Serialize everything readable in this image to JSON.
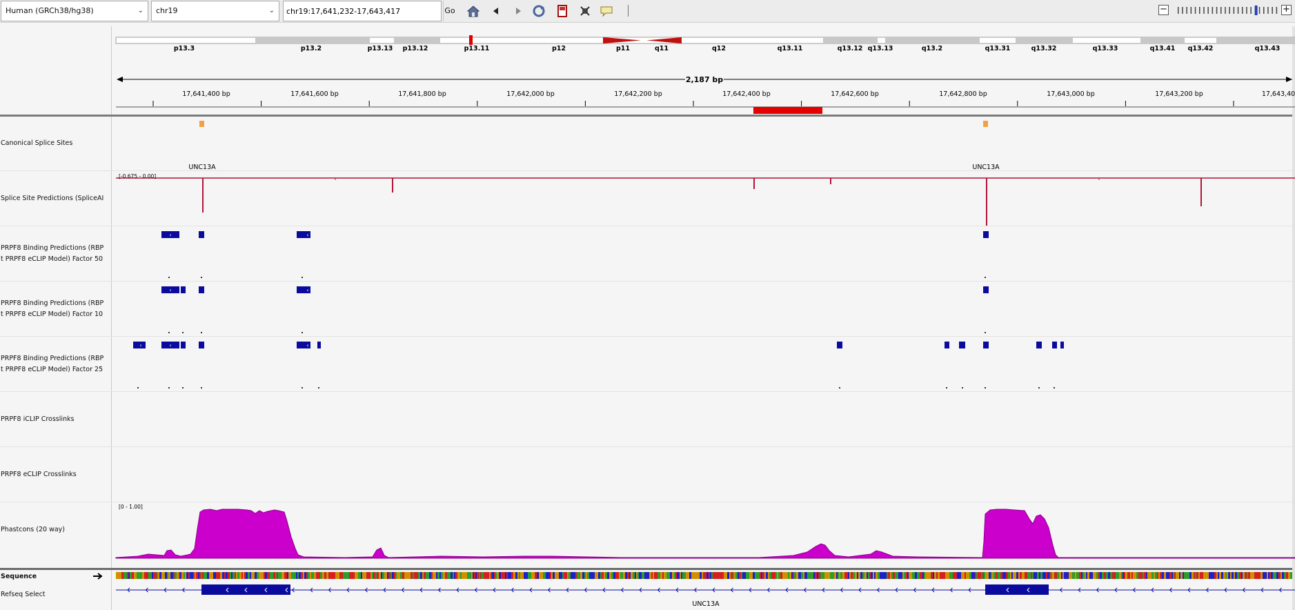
{
  "toolbar": {
    "genome": "Human (GRCh38/hg38)",
    "chromosome": "chr19",
    "locus": "chr19:17,641,232-17,643,417",
    "go_label": "Go",
    "icons": [
      "home-icon",
      "back-icon",
      "forward-icon",
      "refresh-icon",
      "roi-icon",
      "resize-icon",
      "popup-text-icon"
    ]
  },
  "ideogram": {
    "bands": [
      "p13.3",
      "p13.2",
      "p13.13",
      "p13.12",
      "p13.11",
      "p12",
      "p11",
      "q11",
      "q12",
      "q13.11",
      "q13.12",
      "q13.13",
      "q13.2",
      "q13.31",
      "q13.32",
      "q13.33",
      "q13.41",
      "q13.42",
      "q13.43"
    ]
  },
  "ruler": {
    "span_label": "2,187 bp",
    "tick_labels": [
      "17,641,400 bp",
      "17,641,600 bp",
      "17,641,800 bp",
      "17,642,000 bp",
      "17,642,200 bp",
      "17,642,400 bp",
      "17,642,600 bp",
      "17,642,800 bp",
      "17,643,000 bp",
      "17,643,200 bp",
      "17,643,40"
    ]
  },
  "tracks": {
    "canonical": {
      "name": "Canonical Splice Sites",
      "gene_labels": [
        "UNC13A",
        "UNC13A"
      ]
    },
    "spliceai": {
      "name": "Splice Site Predictions (SpliceAI",
      "range": "[-0.675 - 0.00]"
    },
    "prpf8_50": {
      "name_line1": "PRPF8 Binding Predictions (RBP",
      "name_line2": "t PRPF8 eCLIP Model) Factor 50"
    },
    "prpf8_10": {
      "name_line1": "PRPF8 Binding Predictions (RBP",
      "name_line2": "t PRPF8 eCLIP Model) Factor 10"
    },
    "prpf8_25": {
      "name_line1": "PRPF8 Binding Predictions (RBP",
      "name_line2": "t PRPF8 eCLIP Model) Factor 25"
    },
    "iclip": {
      "name": "PRPF8 iCLIP Crosslinks"
    },
    "eclip": {
      "name": "PRPF8 eCLIP Crosslinks"
    },
    "phastcons": {
      "name": "Phastcons (20 way)",
      "range": "[0 - 1.00]"
    },
    "sequence": {
      "name": "Sequence"
    },
    "refseq": {
      "name": "Refseq Select",
      "gene_label": "UNC13A"
    }
  },
  "colors": {
    "feature_blue": "#0a0a9e",
    "spliceai_red": "#b3123a",
    "phastcons_magenta": "#cc00cc",
    "splice_site_orange": "#f5a040",
    "ideogram_red": "#cc1111",
    "roi_red": "#e20000"
  }
}
